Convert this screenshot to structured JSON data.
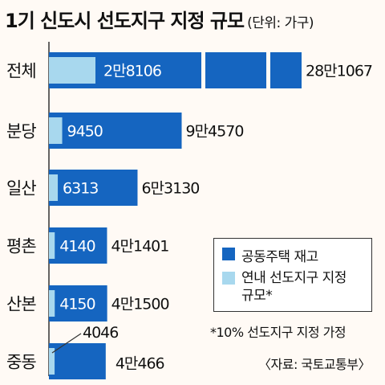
{
  "chart_data": {
    "type": "bar",
    "title": "1기 신도시 선도지구 지정 규모",
    "unit_label": "(단위: 가구)",
    "categories": [
      "전체",
      "분당",
      "일산",
      "평촌",
      "산본",
      "중동"
    ],
    "series": [
      {
        "name": "공동주택 재고",
        "values": [
          281067,
          94570,
          63130,
          41401,
          41500,
          40466
        ],
        "labels": [
          "28만1067",
          "9만4570",
          "6만3130",
          "4만1401",
          "4만1500",
          "4만466"
        ],
        "color": "#1565c0"
      },
      {
        "name": "연내 선도지구 지정 규모*",
        "values": [
          28106,
          9450,
          6313,
          4140,
          4150,
          4046
        ],
        "labels": [
          "2만8106",
          "9450",
          "6313",
          "4140",
          "4150",
          "4046"
        ],
        "color": "#a8d8ee"
      }
    ],
    "overlay": true,
    "legend_position": "bottom-right",
    "note": "*10% 선도지구 지정 가정",
    "source": "〈자료: 국토교통부〉",
    "break_axis_on": "전체"
  }
}
